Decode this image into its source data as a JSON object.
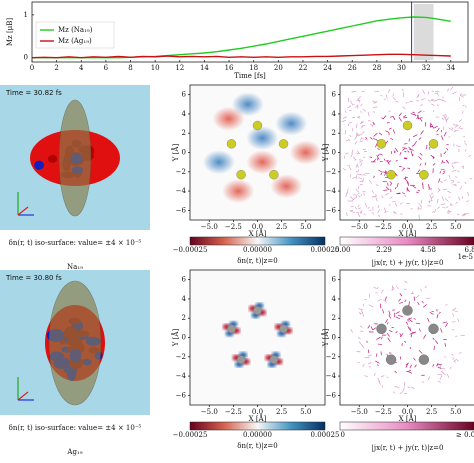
{
  "chart_data": {
    "type": "line",
    "xlabel": "Time [fs]",
    "ylabel": "Mz [μB]",
    "x": [
      0,
      1,
      2,
      3,
      4,
      5,
      6,
      7,
      8,
      9,
      10,
      11,
      12,
      13,
      14,
      15,
      16,
      17,
      18,
      19,
      20,
      21,
      22,
      23,
      24,
      25,
      26,
      27,
      28,
      29,
      30,
      31,
      32,
      33,
      34
    ],
    "series": [
      {
        "name": "Mz (Na₁₉)",
        "color": "#22cc22",
        "values": [
          0,
          0,
          0,
          0,
          0,
          0,
          0,
          0,
          0.01,
          0.02,
          0.03,
          0.05,
          0.07,
          0.09,
          0.11,
          0.14,
          0.18,
          0.22,
          0.27,
          0.32,
          0.38,
          0.44,
          0.5,
          0.56,
          0.62,
          0.68,
          0.74,
          0.8,
          0.86,
          0.9,
          0.93,
          0.95,
          0.94,
          0.9,
          0.85
        ]
      },
      {
        "name": "Mz (Ag₁₉)",
        "color": "#cc1111",
        "values": [
          0,
          0.01,
          0,
          0.02,
          0,
          0.02,
          0.01,
          0.03,
          0.01,
          0.03,
          0.02,
          0.04,
          0.02,
          0.03,
          0.02,
          0.03,
          0.01,
          0.02,
          0.01,
          0.02,
          0.01,
          0.02,
          0.02,
          0.03,
          0.03,
          0.04,
          0.05,
          0.06,
          0.07,
          0.08,
          0.08,
          0.07,
          0.06,
          0.05,
          0.04
        ]
      }
    ],
    "xlim": [
      0,
      35.4
    ],
    "ylim": [
      -0.1,
      1.3
    ],
    "xticks": [
      0,
      2,
      4,
      6,
      8,
      10,
      12,
      14,
      16,
      18,
      20,
      22,
      24,
      26,
      28,
      30,
      32,
      34
    ],
    "yticks": [
      0,
      1
    ],
    "marker_x": 30.82
  },
  "map_axes": {
    "xlabel": "X [Å]",
    "ylabel": "Y [Å]",
    "xlim": [
      -7,
      7
    ],
    "ylim": [
      -7,
      7
    ],
    "xticks": [
      {
        "value": -5,
        "label": "−5.0"
      },
      {
        "value": -2.5,
        "label": "−2.5"
      },
      {
        "value": 0,
        "label": "0.0"
      },
      {
        "value": 2.5,
        "label": "2.5"
      },
      {
        "value": 5,
        "label": "5.0"
      }
    ],
    "yticks": [
      {
        "value": -6,
        "label": "−6"
      },
      {
        "value": -4,
        "label": "−4"
      },
      {
        "value": -2,
        "label": "−2"
      },
      {
        "value": 0,
        "label": "0"
      },
      {
        "value": 2,
        "label": "2"
      },
      {
        "value": 4,
        "label": "4"
      },
      {
        "value": 6,
        "label": "6"
      }
    ]
  },
  "rows": [
    {
      "time": "Time = 30.82 fs",
      "caption": "δn(r, t) iso-surface: value= ±4 × 10⁻⁵",
      "cluster": "Na₁₉",
      "density_bar": {
        "ticks": [
          "−0.00025",
          "0.00000",
          "0.00025"
        ],
        "label": "δn(r, t)|z=0"
      },
      "current_bar": {
        "ticks": [
          "0.00",
          "2.29",
          "4.58",
          "6.87"
        ],
        "exponent": "1e-5",
        "label": "|jx(r, t) + jy(r, t)|z=0"
      }
    },
    {
      "time": "Time = 30.80 fs",
      "caption": "δn(r, t) iso-surface: value= ±4 × 10⁻⁵",
      "cluster": "Ag₁₉",
      "density_bar": {
        "ticks": [
          "−0.00025",
          "0.00000",
          "0.00025"
        ],
        "label": "δn(r, t)|z=0"
      },
      "current_bar": {
        "ticks": [
          "0",
          "≥ 0.0007"
        ],
        "label": "|jx(r, t) + jy(r, t)|z=0"
      }
    }
  ]
}
